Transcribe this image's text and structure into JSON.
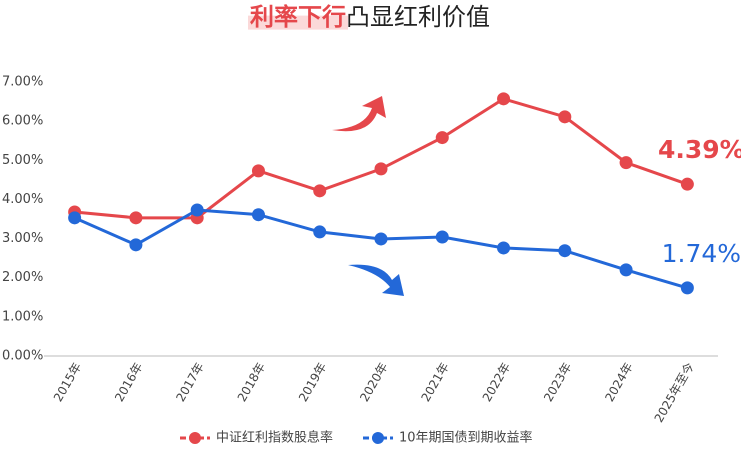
{
  "chart_data": {
    "type": "line",
    "title": [
      "利率下行",
      "凸显红利价值"
    ],
    "categories": [
      "2015年",
      "2016年",
      "2017年",
      "2018年",
      "2019年",
      "2020年",
      "2021年",
      "2022年",
      "2023年",
      "2024年",
      "2025年至今"
    ],
    "series": [
      {
        "name": "中证红利指数股息率",
        "color": "#e5474b",
        "values": [
          3.68,
          3.53,
          3.53,
          4.73,
          4.22,
          4.78,
          5.58,
          6.57,
          6.11,
          4.94,
          4.39
        ],
        "value_labels": [
          null,
          null,
          null,
          null,
          null,
          null,
          null,
          null,
          null,
          null,
          "4.39%"
        ]
      },
      {
        "name": "10年期国债到期收益率",
        "color": "#2368d8",
        "values": [
          3.53,
          2.84,
          3.73,
          3.61,
          3.17,
          2.99,
          3.04,
          2.76,
          2.69,
          2.2,
          1.74
        ],
        "value_labels": [
          null,
          null,
          null,
          null,
          null,
          null,
          null,
          null,
          null,
          null,
          "1.74%"
        ]
      }
    ],
    "ylim": [
      0,
      7
    ],
    "yticks": [
      {
        "value": 0,
        "label": "0.00%"
      },
      {
        "value": 1,
        "label": "1.00%"
      },
      {
        "value": 2,
        "label": "2.00%"
      },
      {
        "value": 3,
        "label": "3.00%"
      },
      {
        "value": 4,
        "label": "4.00%"
      },
      {
        "value": 5,
        "label": "5.00%"
      },
      {
        "value": 6,
        "label": "6.00%"
      },
      {
        "value": 7,
        "label": "7.00%"
      }
    ],
    "grid": false
  }
}
